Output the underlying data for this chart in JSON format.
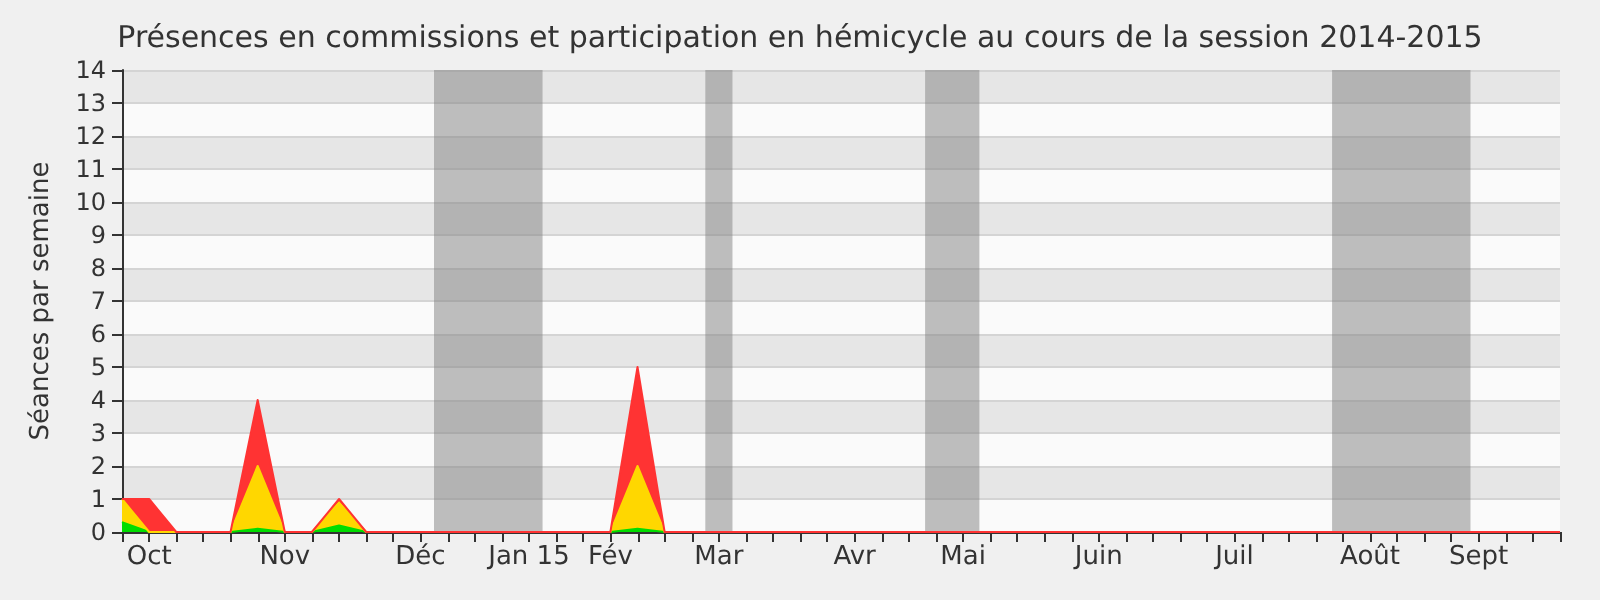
{
  "chart_data": {
    "type": "area",
    "stacked": true,
    "title": "Présences en commissions et participation en hémicycle au cours de la session 2014-2015",
    "ylabel": "Séances par semaine",
    "categories": [
      null,
      "Oct",
      null,
      null,
      null,
      null,
      "Nov",
      null,
      null,
      null,
      null,
      "Déc",
      null,
      null,
      null,
      "Jan 15",
      null,
      null,
      "Fév",
      null,
      null,
      null,
      "Mar",
      null,
      null,
      null,
      null,
      "Avr",
      null,
      null,
      null,
      "Mai",
      null,
      null,
      null,
      null,
      "Juin",
      null,
      null,
      null,
      null,
      "Juil",
      null,
      null,
      null,
      null,
      "Août",
      null,
      null,
      null,
      "Sept",
      null,
      null,
      null
    ],
    "series": [
      {
        "color": "#00dd00",
        "values": [
          0.3,
          0,
          0,
          0,
          0,
          0.1,
          0,
          0,
          0.2,
          0,
          0,
          0,
          0,
          0,
          0,
          0,
          0,
          0,
          0,
          0.1,
          0,
          0,
          0,
          0,
          0,
          0,
          0,
          0,
          0,
          0,
          0,
          0,
          0,
          0,
          0,
          0,
          0,
          0,
          0,
          0,
          0,
          0,
          0,
          0,
          0,
          0,
          0,
          0,
          0,
          0,
          0,
          0,
          0,
          0
        ]
      },
      {
        "color": "#ffd700",
        "values": [
          0.7,
          0,
          0,
          0,
          0,
          1.9,
          0,
          0,
          0.7,
          0,
          0,
          0,
          0,
          0,
          0,
          0,
          0,
          0,
          0,
          1.9,
          0,
          0,
          0,
          0,
          0,
          0,
          0,
          0,
          0,
          0,
          0,
          0,
          0,
          0,
          0,
          0,
          0,
          0,
          0,
          0,
          0,
          0,
          0,
          0,
          0,
          0,
          0,
          0,
          0,
          0,
          0,
          0,
          0,
          0
        ]
      },
      {
        "color": "#ff3333",
        "values": [
          0,
          1,
          0,
          0,
          0,
          2,
          0,
          0,
          0.1,
          0,
          0,
          0,
          0,
          0,
          0,
          0,
          0,
          0,
          0,
          3,
          0,
          0,
          0,
          0,
          0,
          0,
          0,
          0,
          0,
          0,
          0,
          0,
          0,
          0,
          0,
          0,
          0,
          0,
          0,
          0,
          0,
          0,
          0,
          0,
          0,
          0,
          0,
          0,
          0,
          0,
          0,
          0,
          0,
          0
        ]
      }
    ],
    "ylim": [
      0,
      14
    ],
    "yticks": [
      0,
      1,
      2,
      3,
      4,
      5,
      6,
      7,
      8,
      9,
      10,
      11,
      12,
      13,
      14
    ],
    "grid": "y"
  }
}
